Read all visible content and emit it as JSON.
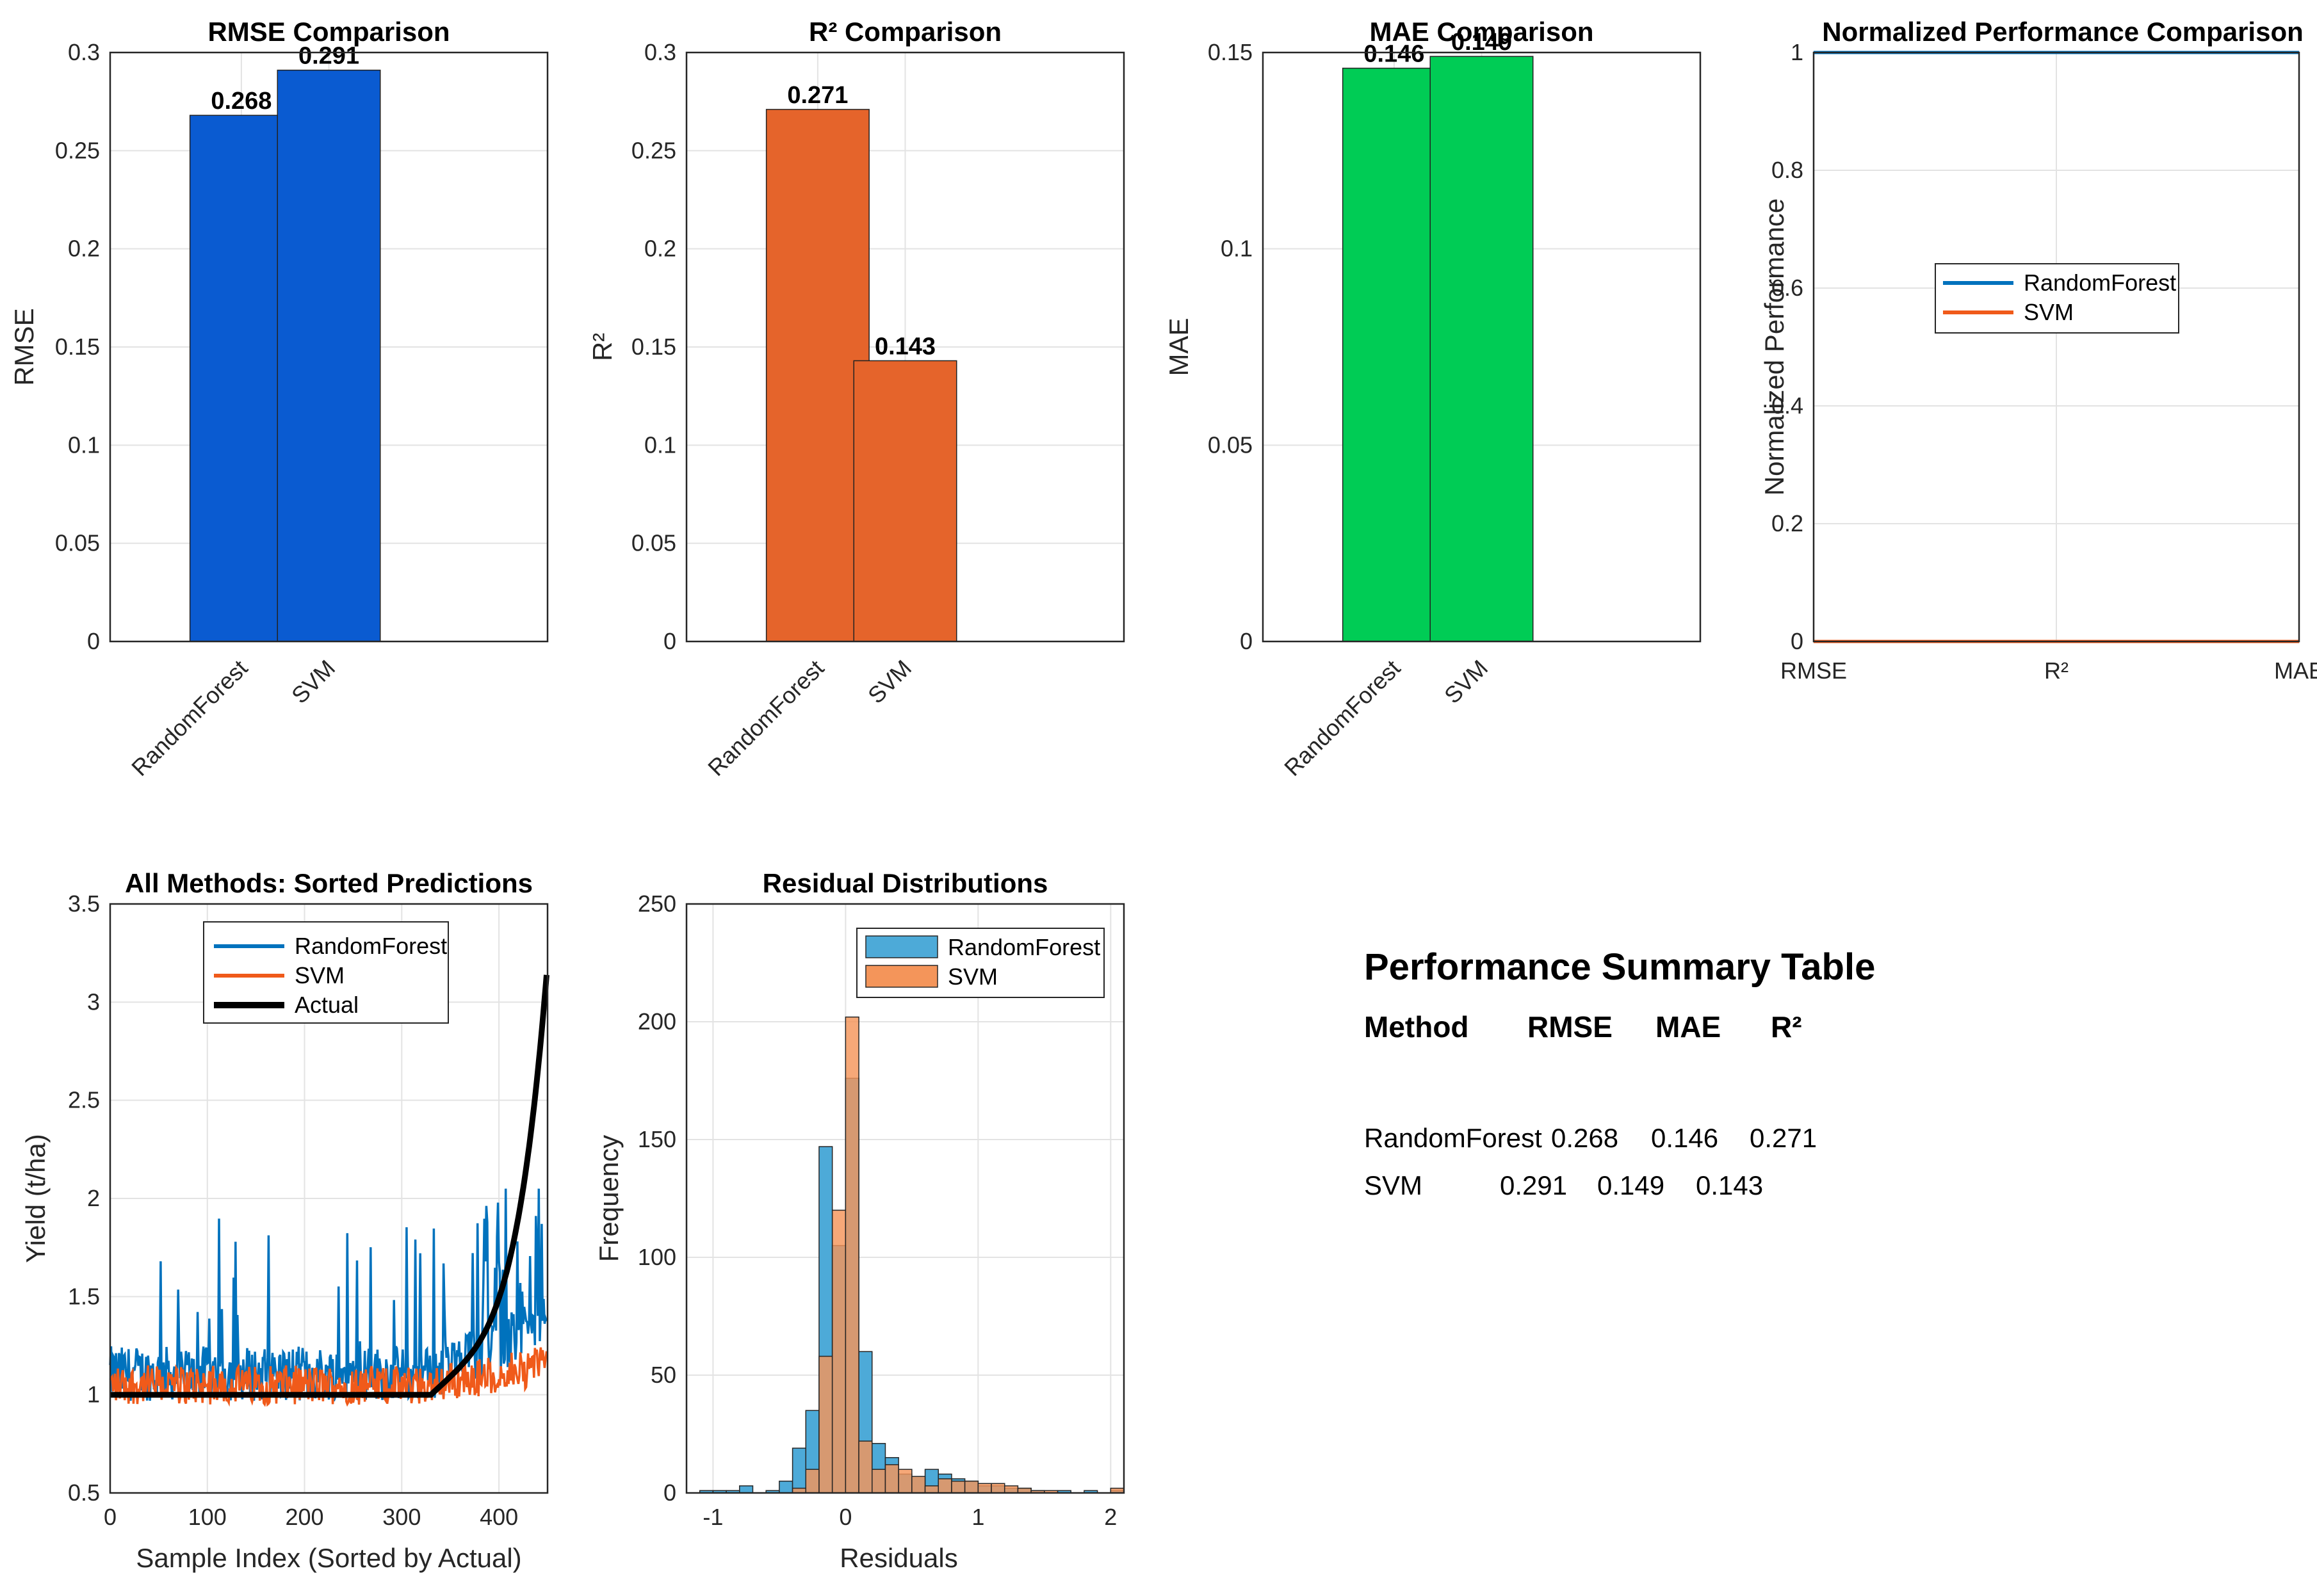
{
  "chart_data": [
    {
      "type": "bar",
      "title": "RMSE Comparison",
      "ylabel": "RMSE",
      "categories": [
        "RandomForest",
        "SVM"
      ],
      "values": [
        0.268,
        0.291
      ],
      "value_labels": [
        "0.268",
        "0.291"
      ],
      "ylim": [
        0,
        0.3
      ],
      "yticks": [
        0,
        0.05,
        0.1,
        0.15,
        0.2,
        0.25,
        0.3
      ],
      "ytick_labels": [
        "0",
        "0.05",
        "0.1",
        "0.15",
        "0.2",
        "0.25",
        "0.3"
      ],
      "color": "#0a5bd1"
    },
    {
      "type": "bar",
      "title": "R² Comparison",
      "ylabel": "R²",
      "categories": [
        "RandomForest",
        "SVM"
      ],
      "values": [
        0.271,
        0.143
      ],
      "value_labels": [
        "0.271",
        "0.143"
      ],
      "ylim": [
        0,
        0.3
      ],
      "yticks": [
        0,
        0.05,
        0.1,
        0.15,
        0.2,
        0.25,
        0.3
      ],
      "ytick_labels": [
        "0",
        "0.05",
        "0.1",
        "0.15",
        "0.2",
        "0.25",
        "0.3"
      ],
      "color": "#e5642b"
    },
    {
      "type": "bar",
      "title": "MAE Comparison",
      "ylabel": "MAE",
      "categories": [
        "RandomForest",
        "SVM"
      ],
      "values": [
        0.146,
        0.149
      ],
      "value_labels": [
        "0.146",
        "0.149"
      ],
      "ylim": [
        0,
        0.15
      ],
      "yticks": [
        0,
        0.05,
        0.1,
        0.15
      ],
      "ytick_labels": [
        "0",
        "0.05",
        "0.1",
        "0.15"
      ],
      "color": "#00cc55"
    },
    {
      "type": "line",
      "title": "Normalized Performance Comparison",
      "ylabel": "Normalized Performance",
      "categories": [
        "RMSE",
        "R²",
        "MAE"
      ],
      "series": [
        {
          "name": "RandomForest",
          "values": [
            1,
            1,
            1
          ],
          "color": "#0072bd"
        },
        {
          "name": "SVM",
          "values": [
            0,
            0,
            0
          ],
          "color": "#f05a1a"
        }
      ],
      "ylim": [
        0,
        1
      ],
      "yticks": [
        0,
        0.2,
        0.4,
        0.6,
        0.8,
        1
      ],
      "ytick_labels": [
        "0",
        "0.2",
        "0.4",
        "0.6",
        "0.8",
        "1"
      ],
      "legend": "center"
    },
    {
      "type": "line",
      "title": "All Methods: Sorted Predictions",
      "xlabel": "Sample Index (Sorted by Actual)",
      "ylabel": "Yield (t/ha)",
      "xlim": [
        0,
        450
      ],
      "ylim": [
        0.5,
        3.5
      ],
      "xticks": [
        0,
        100,
        200,
        300,
        400
      ],
      "xtick_labels": [
        "0",
        "100",
        "200",
        "300",
        "400"
      ],
      "yticks": [
        0.5,
        1,
        1.5,
        2,
        2.5,
        3,
        3.5
      ],
      "ytick_labels": [
        "0.5",
        "1",
        "1.5",
        "2",
        "2.5",
        "3",
        "3.5"
      ],
      "n_samples": 450,
      "series": [
        {
          "name": "RandomForest",
          "color": "#0072bd",
          "description": "noisy predictions around 1.0-1.3 with spikes up to ~2.05, rising toward 1.5-1.9 past index 330"
        },
        {
          "name": "SVM",
          "color": "#f05a1a",
          "description": "noisy predictions around 0.95-1.25, slightly rising to ~1.2 at high indices"
        },
        {
          "name": "Actual",
          "color": "#000000",
          "description": "flat at 1.0 until index ~330, then rising to ~3.2 at index 450"
        }
      ],
      "legend": "top-center"
    },
    {
      "type": "histogram",
      "title": "Residual Distributions",
      "xlabel": "Residuals",
      "ylabel": "Frequency",
      "xlim": [
        -1.2,
        2.1
      ],
      "ylim": [
        0,
        250
      ],
      "xticks": [
        -1,
        0,
        1,
        2
      ],
      "xtick_labels": [
        "-1",
        "0",
        "1",
        "2"
      ],
      "yticks": [
        0,
        50,
        100,
        150,
        200,
        250
      ],
      "ytick_labels": [
        "0",
        "50",
        "100",
        "150",
        "200",
        "250"
      ],
      "bin_width": 0.1,
      "series": [
        {
          "name": "RandomForest",
          "color": "#4daad8",
          "bin_starts": [
            -1.2,
            -1.1,
            -1.0,
            -0.9,
            -0.8,
            -0.7,
            -0.6,
            -0.5,
            -0.4,
            -0.3,
            -0.2,
            -0.1,
            0.0,
            0.1,
            0.2,
            0.3,
            0.4,
            0.5,
            0.6,
            0.7,
            0.8,
            0.9,
            1.0,
            1.1,
            1.2,
            1.3,
            1.4,
            1.5,
            1.6,
            1.7,
            1.8,
            1.9,
            2.0
          ],
          "counts": [
            0,
            1,
            1,
            1,
            3,
            0,
            1,
            5,
            19,
            35,
            147,
            105,
            176,
            60,
            21,
            15,
            8,
            7,
            10,
            8,
            6,
            5,
            3,
            3,
            2,
            2,
            1,
            0,
            1,
            0,
            1,
            0,
            1
          ]
        },
        {
          "name": "SVM",
          "color": "#f4955a",
          "bin_starts": [
            -1.2,
            -1.1,
            -1.0,
            -0.9,
            -0.8,
            -0.7,
            -0.6,
            -0.5,
            -0.4,
            -0.3,
            -0.2,
            -0.1,
            0.0,
            0.1,
            0.2,
            0.3,
            0.4,
            0.5,
            0.6,
            0.7,
            0.8,
            0.9,
            1.0,
            1.1,
            1.2,
            1.3,
            1.4,
            1.5,
            1.6,
            1.7,
            1.8,
            1.9,
            2.0
          ],
          "counts": [
            0,
            0,
            0,
            0,
            0,
            0,
            0,
            0,
            2,
            10,
            58,
            120,
            202,
            22,
            10,
            12,
            10,
            7,
            3,
            6,
            5,
            5,
            4,
            4,
            3,
            2,
            1,
            1,
            0,
            0,
            0,
            0,
            2
          ]
        }
      ],
      "legend": "top-right"
    }
  ],
  "summary_table": {
    "title": "Performance Summary Table",
    "headers": [
      "Method",
      "RMSE",
      "MAE",
      "R²"
    ],
    "rows": [
      [
        "RandomForest",
        "0.268",
        "0.146",
        "0.271"
      ],
      [
        "SVM",
        "0.291",
        "0.149",
        "0.143"
      ]
    ]
  }
}
